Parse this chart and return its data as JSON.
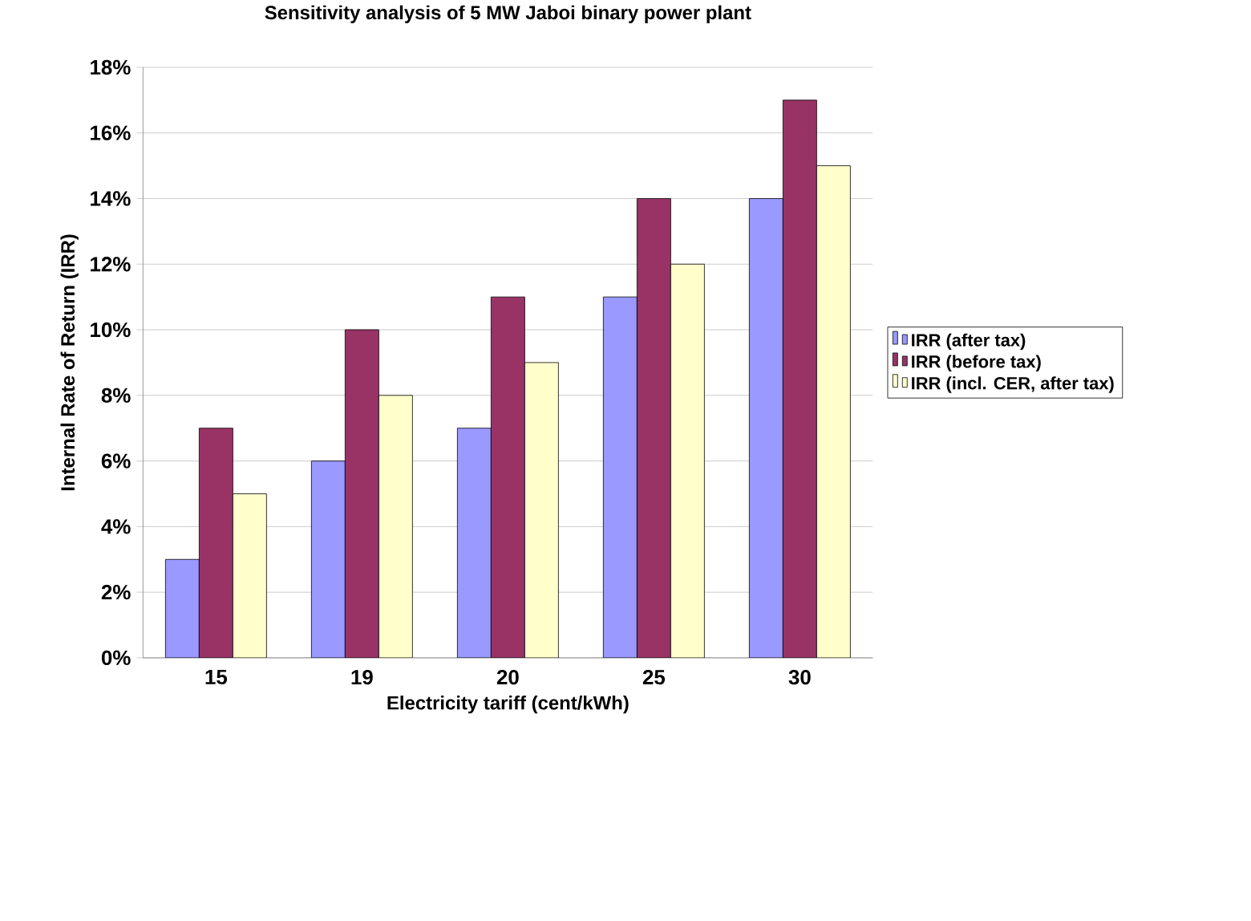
{
  "chart_data": {
    "type": "bar",
    "title": "Sensitivity analysis of 5 MW Jaboi binary power plant",
    "xlabel": "Electricity tariff (cent/kWh)",
    "ylabel": "Internal Rate of Return (IRR)",
    "categories": [
      "15",
      "19",
      "20",
      "25",
      "30"
    ],
    "series": [
      {
        "name": "IRR (after tax)",
        "color": "#9999ff",
        "values": [
          3,
          6,
          7,
          11,
          14
        ]
      },
      {
        "name": "IRR (before tax)",
        "color": "#993366",
        "values": [
          7,
          10,
          11,
          14,
          17
        ]
      },
      {
        "name": "IRR (incl. CER, after tax)",
        "color": "#ffffcc",
        "values": [
          5,
          8,
          9,
          12,
          15
        ]
      }
    ],
    "ylim": [
      0,
      18
    ],
    "yticks": [
      {
        "value": 0,
        "label": "0%"
      },
      {
        "value": 2,
        "label": "2%"
      },
      {
        "value": 4,
        "label": "4%"
      },
      {
        "value": 6,
        "label": "6%"
      },
      {
        "value": 8,
        "label": "8%"
      },
      {
        "value": 10,
        "label": "10%"
      },
      {
        "value": 12,
        "label": "12%"
      },
      {
        "value": 14,
        "label": "14%"
      },
      {
        "value": 16,
        "label": "16%"
      },
      {
        "value": 18,
        "label": "18%"
      }
    ],
    "grid": "y",
    "legend": "right"
  }
}
